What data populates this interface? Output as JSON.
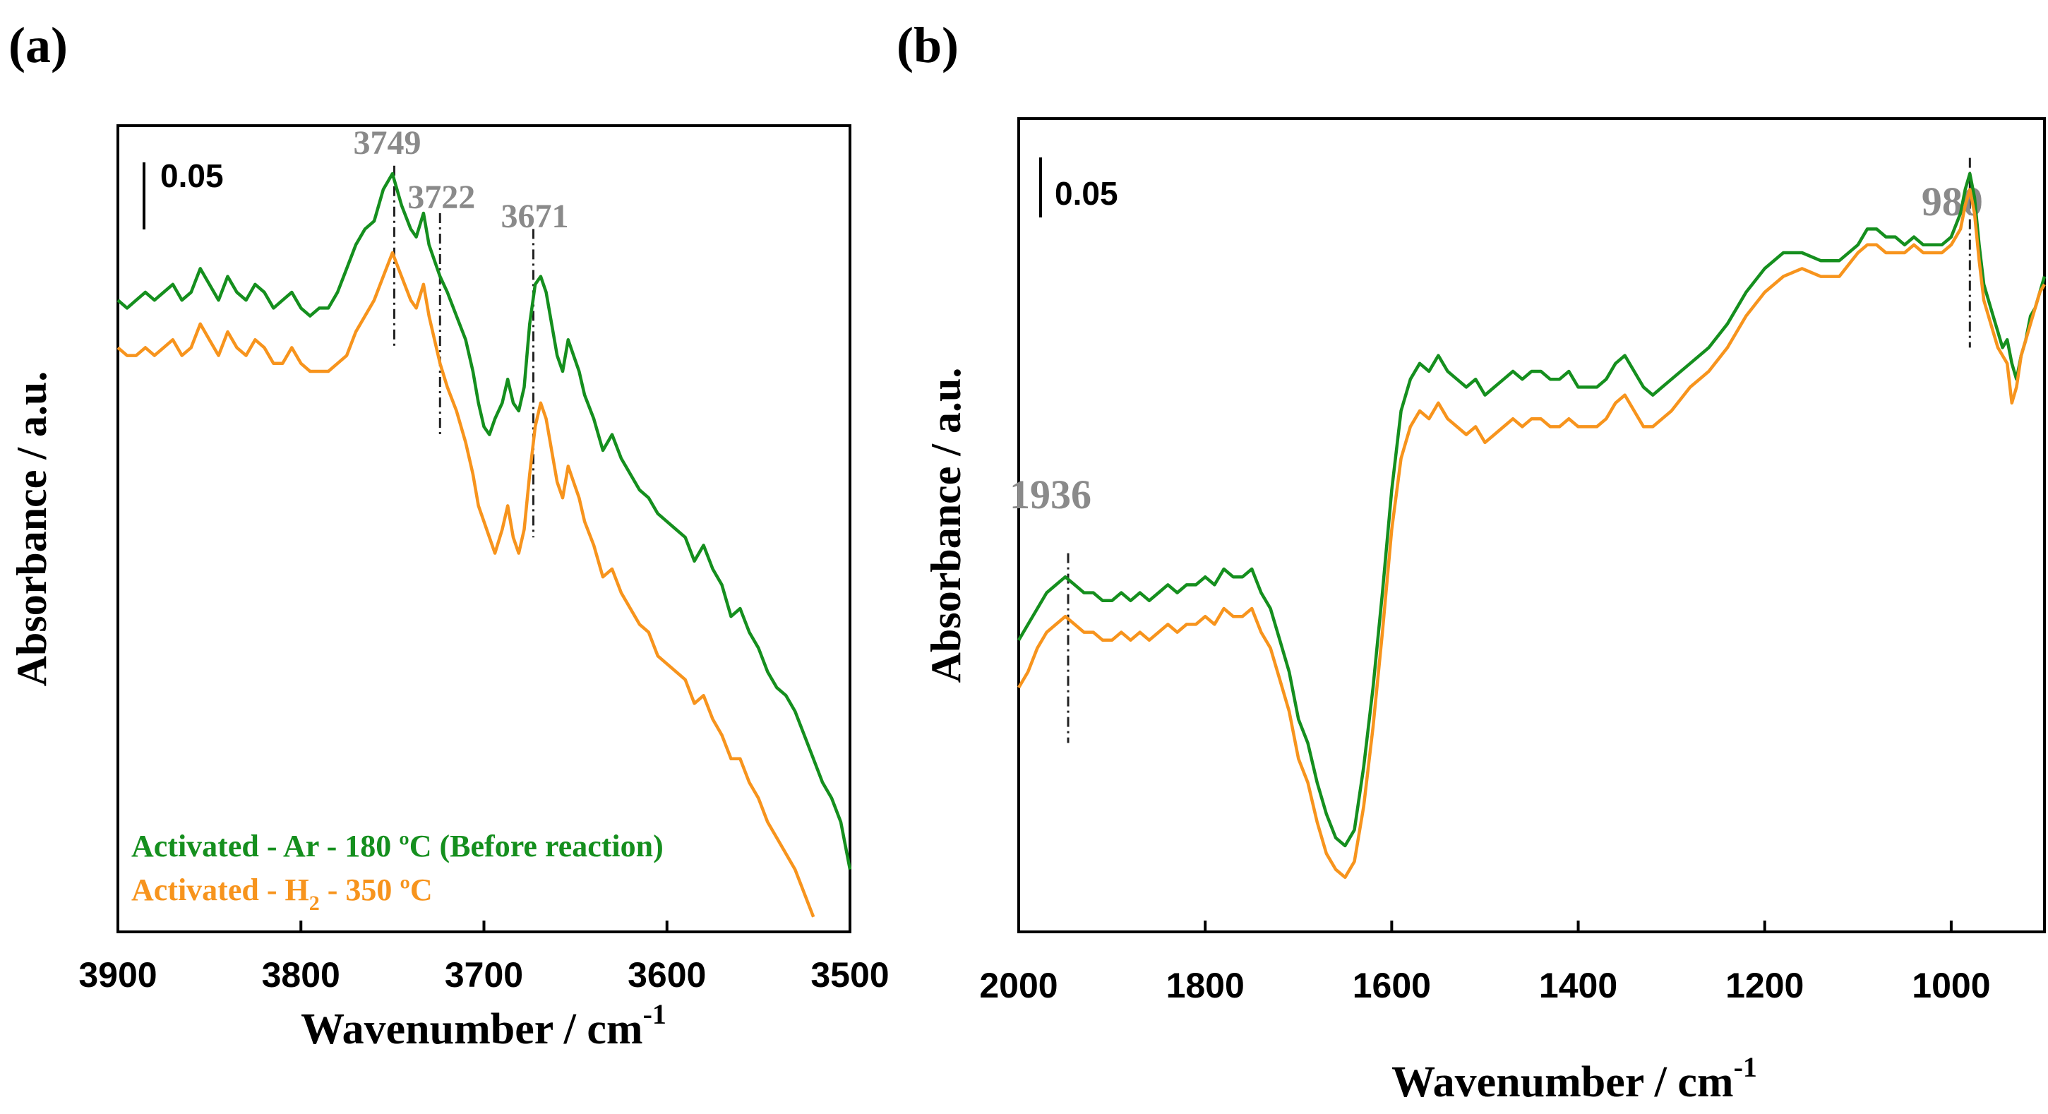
{
  "colors": {
    "ar": "#158f1e",
    "h2": "#f7941d",
    "annot": "#8a8a8a",
    "axis": "#000000"
  },
  "chart_data": [
    {
      "panel": "(a)",
      "type": "line",
      "xlabel_main": "Wavenumber / cm",
      "xlabel_sup": "-1",
      "ylabel": "Absorbance / a.u.",
      "xlim": [
        3900,
        3500
      ],
      "ylim": [
        0,
        1
      ],
      "xticks": [
        3900,
        3800,
        3700,
        3600,
        3500
      ],
      "xtick_labels": [
        "3900",
        "3800",
        "3700",
        "3600",
        "3500"
      ],
      "scale_bar_label": "0.05",
      "scale_bar_value": 0.05,
      "peaks": [
        {
          "label": "3749",
          "x": 3749,
          "y_top": 0.96,
          "y_bottom": 0.73
        },
        {
          "label": "3722",
          "x": 3724,
          "y_top": 0.9,
          "y_bottom": 0.62
        },
        {
          "label": "3671",
          "x": 3673,
          "y_top": 0.88,
          "y_bottom": 0.49
        }
      ],
      "legend": [
        {
          "text": "Activated - Ar - 180 ºC (Before reaction)",
          "color": "ar"
        },
        {
          "text_main": "Activated - H",
          "text_sub": "2",
          "text_tail": " - 350 ºC",
          "color": "h2"
        }
      ],
      "series": [
        {
          "name": "Activated - Ar - 180 ºC (Before reaction)",
          "color": "ar",
          "x": [
            3900,
            3895,
            3890,
            3885,
            3880,
            3875,
            3870,
            3865,
            3860,
            3855,
            3850,
            3845,
            3840,
            3835,
            3830,
            3825,
            3820,
            3815,
            3810,
            3805,
            3800,
            3795,
            3790,
            3785,
            3780,
            3775,
            3770,
            3765,
            3760,
            3755,
            3750,
            3745,
            3740,
            3737,
            3733,
            3730,
            3727,
            3724,
            3720,
            3715,
            3710,
            3706,
            3703,
            3700,
            3697,
            3694,
            3690,
            3687,
            3684,
            3681,
            3678,
            3675,
            3672,
            3669,
            3666,
            3663,
            3660,
            3657,
            3654,
            3651,
            3648,
            3645,
            3640,
            3635,
            3630,
            3625,
            3620,
            3615,
            3610,
            3605,
            3600,
            3595,
            3590,
            3585,
            3580,
            3575,
            3570,
            3565,
            3560,
            3555,
            3550,
            3545,
            3540,
            3535,
            3530,
            3525,
            3520,
            3515,
            3510,
            3505,
            3500
          ],
          "y": [
            0.79,
            0.78,
            0.79,
            0.8,
            0.79,
            0.8,
            0.81,
            0.79,
            0.8,
            0.83,
            0.81,
            0.79,
            0.82,
            0.8,
            0.79,
            0.81,
            0.8,
            0.78,
            0.79,
            0.8,
            0.78,
            0.77,
            0.78,
            0.78,
            0.8,
            0.83,
            0.86,
            0.88,
            0.89,
            0.93,
            0.95,
            0.91,
            0.88,
            0.87,
            0.9,
            0.86,
            0.84,
            0.82,
            0.8,
            0.77,
            0.74,
            0.7,
            0.66,
            0.63,
            0.62,
            0.64,
            0.66,
            0.69,
            0.66,
            0.65,
            0.68,
            0.76,
            0.81,
            0.82,
            0.8,
            0.76,
            0.72,
            0.7,
            0.74,
            0.72,
            0.7,
            0.67,
            0.64,
            0.6,
            0.62,
            0.59,
            0.57,
            0.55,
            0.54,
            0.52,
            0.51,
            0.5,
            0.49,
            0.46,
            0.48,
            0.45,
            0.43,
            0.39,
            0.4,
            0.37,
            0.35,
            0.32,
            0.3,
            0.29,
            0.27,
            0.24,
            0.21,
            0.18,
            0.16,
            0.13,
            0.07
          ]
        },
        {
          "name": "Activated - H2 - 350 ºC",
          "color": "h2",
          "x": [
            3900,
            3895,
            3890,
            3885,
            3880,
            3875,
            3870,
            3865,
            3860,
            3855,
            3850,
            3845,
            3840,
            3835,
            3830,
            3825,
            3820,
            3815,
            3810,
            3805,
            3800,
            3795,
            3790,
            3785,
            3780,
            3775,
            3770,
            3765,
            3760,
            3755,
            3750,
            3745,
            3740,
            3737,
            3733,
            3730,
            3727,
            3724,
            3720,
            3715,
            3710,
            3706,
            3703,
            3700,
            3697,
            3694,
            3690,
            3687,
            3684,
            3681,
            3678,
            3675,
            3672,
            3669,
            3666,
            3663,
            3660,
            3657,
            3654,
            3651,
            3648,
            3645,
            3640,
            3635,
            3630,
            3625,
            3620,
            3615,
            3610,
            3605,
            3600,
            3595,
            3590,
            3585,
            3580,
            3575,
            3570,
            3565,
            3560,
            3555,
            3550,
            3545,
            3540,
            3535,
            3530,
            3525,
            3520
          ],
          "y": [
            0.73,
            0.72,
            0.72,
            0.73,
            0.72,
            0.73,
            0.74,
            0.72,
            0.73,
            0.76,
            0.74,
            0.72,
            0.75,
            0.73,
            0.72,
            0.74,
            0.73,
            0.71,
            0.71,
            0.73,
            0.71,
            0.7,
            0.7,
            0.7,
            0.71,
            0.72,
            0.75,
            0.77,
            0.79,
            0.82,
            0.85,
            0.82,
            0.79,
            0.78,
            0.81,
            0.77,
            0.74,
            0.71,
            0.68,
            0.65,
            0.61,
            0.57,
            0.53,
            0.51,
            0.49,
            0.47,
            0.5,
            0.53,
            0.49,
            0.47,
            0.5,
            0.57,
            0.63,
            0.66,
            0.64,
            0.6,
            0.56,
            0.54,
            0.58,
            0.56,
            0.54,
            0.51,
            0.48,
            0.44,
            0.45,
            0.42,
            0.4,
            0.38,
            0.37,
            0.34,
            0.33,
            0.32,
            0.31,
            0.28,
            0.29,
            0.26,
            0.24,
            0.21,
            0.21,
            0.18,
            0.16,
            0.13,
            0.11,
            0.09,
            0.07,
            0.04,
            0.01
          ]
        }
      ]
    },
    {
      "panel": "(b)",
      "type": "line",
      "xlabel_main": "Wavenumber / cm",
      "xlabel_sup": "-1",
      "ylabel": "Absorbance / a.u.",
      "xlim": [
        2000,
        900
      ],
      "ylim": [
        0,
        1
      ],
      "xticks": [
        2000,
        1800,
        1600,
        1400,
        1200,
        1000
      ],
      "xtick_labels": [
        "2000",
        "1800",
        "1600",
        "1400",
        "1200",
        "1000"
      ],
      "scale_bar_label": "0.05",
      "scale_bar_value": 0.05,
      "peaks": [
        {
          "label": "1936",
          "x": 1947,
          "y_top": 0.47,
          "y_bottom": 0.23
        },
        {
          "label": "980",
          "x": 980,
          "y_top": 0.97,
          "y_bottom": 0.73
        }
      ],
      "series": [
        {
          "name": "Activated - Ar - 180 ºC (Before reaction)",
          "color": "ar",
          "x": [
            2000,
            1990,
            1980,
            1970,
            1960,
            1950,
            1940,
            1930,
            1920,
            1910,
            1900,
            1890,
            1880,
            1870,
            1860,
            1850,
            1840,
            1830,
            1820,
            1810,
            1800,
            1790,
            1780,
            1770,
            1760,
            1750,
            1740,
            1730,
            1720,
            1710,
            1700,
            1690,
            1680,
            1670,
            1660,
            1650,
            1640,
            1630,
            1620,
            1610,
            1600,
            1590,
            1580,
            1570,
            1560,
            1550,
            1540,
            1530,
            1520,
            1510,
            1500,
            1490,
            1480,
            1470,
            1460,
            1450,
            1440,
            1430,
            1420,
            1410,
            1400,
            1390,
            1380,
            1370,
            1360,
            1350,
            1340,
            1330,
            1320,
            1310,
            1300,
            1280,
            1260,
            1240,
            1220,
            1200,
            1180,
            1160,
            1140,
            1120,
            1100,
            1090,
            1080,
            1070,
            1060,
            1050,
            1040,
            1030,
            1020,
            1010,
            1000,
            990,
            985,
            980,
            975,
            970,
            965,
            960,
            955,
            950,
            945,
            940,
            935,
            930,
            925,
            920,
            915,
            910,
            905,
            900
          ],
          "y": [
            0.36,
            0.38,
            0.4,
            0.42,
            0.43,
            0.44,
            0.43,
            0.42,
            0.42,
            0.41,
            0.41,
            0.42,
            0.41,
            0.42,
            0.41,
            0.42,
            0.43,
            0.42,
            0.43,
            0.43,
            0.44,
            0.43,
            0.45,
            0.44,
            0.44,
            0.45,
            0.42,
            0.4,
            0.36,
            0.32,
            0.26,
            0.23,
            0.18,
            0.14,
            0.11,
            0.1,
            0.12,
            0.2,
            0.3,
            0.42,
            0.55,
            0.65,
            0.69,
            0.71,
            0.7,
            0.72,
            0.7,
            0.69,
            0.68,
            0.69,
            0.67,
            0.68,
            0.69,
            0.7,
            0.69,
            0.7,
            0.7,
            0.69,
            0.69,
            0.7,
            0.68,
            0.68,
            0.68,
            0.69,
            0.71,
            0.72,
            0.7,
            0.68,
            0.67,
            0.68,
            0.69,
            0.71,
            0.73,
            0.76,
            0.8,
            0.83,
            0.85,
            0.85,
            0.84,
            0.84,
            0.86,
            0.88,
            0.88,
            0.87,
            0.87,
            0.86,
            0.87,
            0.86,
            0.86,
            0.86,
            0.87,
            0.9,
            0.93,
            0.95,
            0.92,
            0.86,
            0.81,
            0.79,
            0.77,
            0.75,
            0.73,
            0.74,
            0.71,
            0.69,
            0.72,
            0.74,
            0.77,
            0.78,
            0.8,
            0.82
          ]
        },
        {
          "name": "Activated - H2 - 350 ºC",
          "color": "h2",
          "x": [
            2000,
            1990,
            1980,
            1970,
            1960,
            1950,
            1940,
            1930,
            1920,
            1910,
            1900,
            1890,
            1880,
            1870,
            1860,
            1850,
            1840,
            1830,
            1820,
            1810,
            1800,
            1790,
            1780,
            1770,
            1760,
            1750,
            1740,
            1730,
            1720,
            1710,
            1700,
            1690,
            1680,
            1670,
            1660,
            1650,
            1640,
            1630,
            1620,
            1610,
            1600,
            1590,
            1580,
            1570,
            1560,
            1550,
            1540,
            1530,
            1520,
            1510,
            1500,
            1490,
            1480,
            1470,
            1460,
            1450,
            1440,
            1430,
            1420,
            1410,
            1400,
            1390,
            1380,
            1370,
            1360,
            1350,
            1340,
            1330,
            1320,
            1310,
            1300,
            1280,
            1260,
            1240,
            1220,
            1200,
            1180,
            1160,
            1140,
            1120,
            1100,
            1090,
            1080,
            1070,
            1060,
            1050,
            1040,
            1030,
            1020,
            1010,
            1000,
            990,
            985,
            980,
            975,
            970,
            965,
            960,
            955,
            950,
            945,
            940,
            935,
            930,
            925,
            920,
            915,
            910,
            905,
            900
          ],
          "y": [
            0.3,
            0.32,
            0.35,
            0.37,
            0.38,
            0.39,
            0.38,
            0.37,
            0.37,
            0.36,
            0.36,
            0.37,
            0.36,
            0.37,
            0.36,
            0.37,
            0.38,
            0.37,
            0.38,
            0.38,
            0.39,
            0.38,
            0.4,
            0.39,
            0.39,
            0.4,
            0.37,
            0.35,
            0.31,
            0.27,
            0.21,
            0.18,
            0.13,
            0.09,
            0.07,
            0.06,
            0.08,
            0.15,
            0.25,
            0.37,
            0.5,
            0.59,
            0.63,
            0.65,
            0.64,
            0.66,
            0.64,
            0.63,
            0.62,
            0.63,
            0.61,
            0.62,
            0.63,
            0.64,
            0.63,
            0.64,
            0.64,
            0.63,
            0.63,
            0.64,
            0.63,
            0.63,
            0.63,
            0.64,
            0.66,
            0.67,
            0.65,
            0.63,
            0.63,
            0.64,
            0.65,
            0.68,
            0.7,
            0.73,
            0.77,
            0.8,
            0.82,
            0.83,
            0.82,
            0.82,
            0.85,
            0.86,
            0.86,
            0.85,
            0.85,
            0.85,
            0.86,
            0.85,
            0.85,
            0.85,
            0.86,
            0.88,
            0.91,
            0.93,
            0.9,
            0.84,
            0.79,
            0.77,
            0.75,
            0.73,
            0.72,
            0.71,
            0.66,
            0.68,
            0.72,
            0.74,
            0.76,
            0.78,
            0.8,
            0.81
          ]
        }
      ]
    }
  ]
}
